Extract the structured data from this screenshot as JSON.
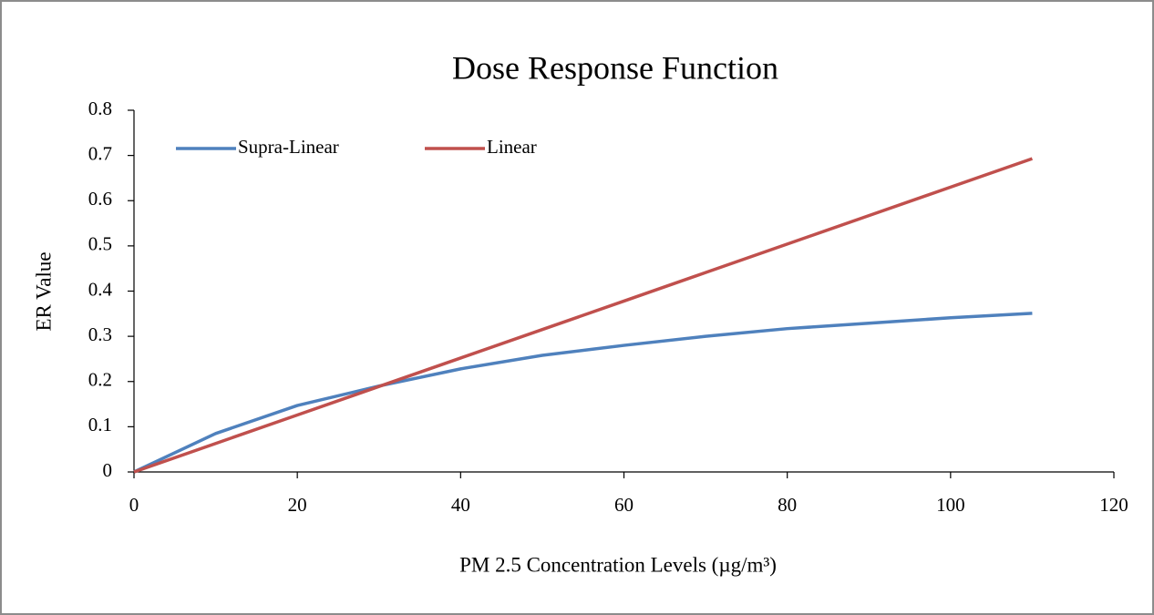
{
  "chart_data": {
    "type": "line",
    "title": "Dose Response Function",
    "xlabel": "PM 2.5 Concentration Levels (µg/m³)",
    "ylabel": "ER Value",
    "x": [
      0,
      10,
      20,
      30,
      40,
      50,
      60,
      70,
      80,
      90,
      100,
      110
    ],
    "series": [
      {
        "name": "Supra-Linear",
        "color": "#4f81bd",
        "values": [
          0,
          0.085,
          0.147,
          0.19,
          0.228,
          0.258,
          0.28,
          0.3,
          0.317,
          0.329,
          0.341,
          0.351
        ]
      },
      {
        "name": "Linear",
        "color": "#c0504d",
        "values": [
          0,
          0.063,
          0.126,
          0.189,
          0.252,
          0.315,
          0.378,
          0.441,
          0.504,
          0.567,
          0.63,
          0.693
        ]
      }
    ],
    "xlim": [
      0,
      120
    ],
    "xticks": [
      0,
      20,
      40,
      60,
      80,
      100,
      120
    ],
    "ylim": [
      0,
      0.8
    ],
    "yticks": [
      0,
      0.1,
      0.2,
      0.3,
      0.4,
      0.5,
      0.6,
      0.7,
      0.8
    ],
    "grid": false,
    "legend": "top-left"
  }
}
